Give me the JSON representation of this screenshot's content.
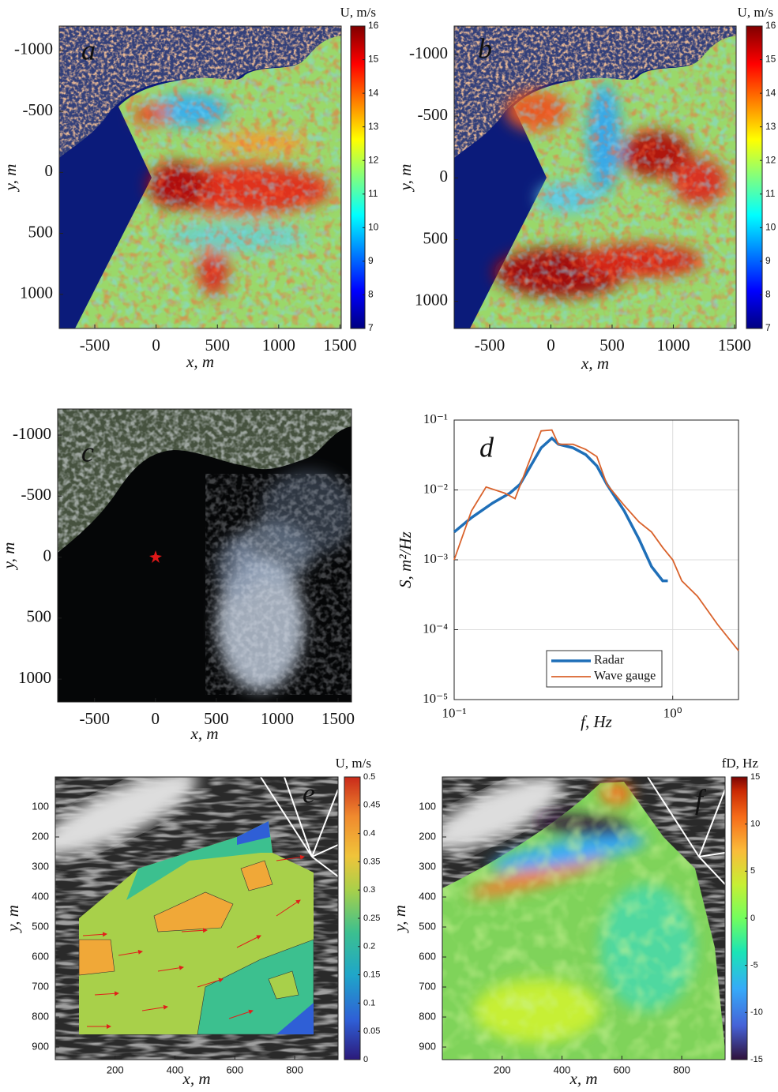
{
  "chart_data": [
    {
      "type": "heatmap",
      "panel_label": "a",
      "xlabel": "x, m",
      "ylabel": "y, m",
      "colorbar_label": "U, m/s",
      "colormap": "jet",
      "xlim": [
        -790,
        1510
      ],
      "xticks": [
        -500,
        0,
        500,
        1000,
        1500
      ],
      "ylim": [
        -1200,
        1280
      ],
      "y_reverse": true,
      "yticks": [
        -1000,
        -500,
        0,
        500,
        1000
      ],
      "clim": [
        7,
        16
      ],
      "cticks": [
        7,
        8,
        9,
        10,
        11,
        12,
        13,
        14,
        15,
        16
      ]
    },
    {
      "type": "heatmap",
      "panel_label": "b",
      "xlabel": "x, m",
      "ylabel": "y, m",
      "colorbar_label": "U, m/s",
      "colormap": "jet",
      "xlim": [
        -790,
        1513
      ],
      "xticks": [
        -500,
        0,
        500,
        1000,
        1500
      ],
      "ylim": [
        -1230,
        1220
      ],
      "y_reverse": true,
      "yticks": [
        -1000,
        -500,
        0,
        500,
        1000
      ],
      "clim": [
        7,
        16
      ],
      "cticks": [
        7,
        8,
        9,
        10,
        11,
        12,
        13,
        14,
        15,
        16
      ]
    },
    {
      "type": "image",
      "panel_label": "c",
      "xlabel": "x, m",
      "ylabel": "y, m",
      "xlim": [
        -803,
        1610
      ],
      "xticks": [
        -500,
        0,
        500,
        1000,
        1500
      ],
      "ylim": [
        -1214,
        1187
      ],
      "y_reverse": true,
      "yticks": [
        -1000,
        -500,
        0,
        500,
        1000
      ]
    },
    {
      "type": "line",
      "panel_label": "d",
      "xlabel": "f, Hz",
      "ylabel": "S, m²/Hz",
      "log_x": true,
      "log_y": true,
      "grid": true,
      "legend": "lower center",
      "xlim": [
        0.1,
        2
      ],
      "xticks": [
        {
          "value": 0.1,
          "label": "10⁻¹"
        },
        {
          "value": 1,
          "label": "10⁰"
        }
      ],
      "ylim": [
        1e-05,
        0.1
      ],
      "yticks": [
        {
          "value": 1e-05,
          "label": "10⁻⁵"
        },
        {
          "value": 0.0001,
          "label": "10⁻⁴"
        },
        {
          "value": 0.001,
          "label": "10⁻³"
        },
        {
          "value": 0.01,
          "label": "10⁻²"
        },
        {
          "value": 0.1,
          "label": "10⁻¹"
        }
      ],
      "series": [
        {
          "name": "Radar",
          "color": "#1f6fb8",
          "x": [
            0.1,
            0.12,
            0.15,
            0.18,
            0.2,
            0.22,
            0.25,
            0.28,
            0.3,
            0.35,
            0.4,
            0.45,
            0.5,
            0.6,
            0.7,
            0.8,
            0.9,
            0.95
          ],
          "values": [
            0.0025,
            0.004,
            0.0065,
            0.009,
            0.012,
            0.02,
            0.04,
            0.055,
            0.045,
            0.04,
            0.032,
            0.022,
            0.012,
            0.005,
            0.002,
            0.0008,
            0.0005,
            0.0005
          ]
        },
        {
          "name": "Wave gauge",
          "color": "#d9622b",
          "x": [
            0.1,
            0.12,
            0.14,
            0.17,
            0.19,
            0.22,
            0.25,
            0.28,
            0.3,
            0.35,
            0.4,
            0.45,
            0.5,
            0.6,
            0.7,
            0.8,
            0.9,
            1.0,
            1.1,
            1.3,
            1.6,
            2.0
          ],
          "values": [
            0.001,
            0.005,
            0.011,
            0.009,
            0.0075,
            0.025,
            0.07,
            0.072,
            0.045,
            0.045,
            0.038,
            0.03,
            0.012,
            0.006,
            0.0035,
            0.0025,
            0.0015,
            0.001,
            0.0005,
            0.0003,
            0.00012,
            5e-05
          ]
        }
      ]
    },
    {
      "type": "heatmap",
      "panel_label": "e",
      "xlabel": "x, m",
      "ylabel": "y, m",
      "colorbar_label": "U, m/s",
      "colormap": "parula",
      "xlim": [
        0,
        945
      ],
      "xticks": [
        200,
        400,
        600,
        800
      ],
      "ylim": [
        0,
        942
      ],
      "y_reverse": true,
      "yticks": [
        100,
        200,
        300,
        400,
        500,
        600,
        700,
        800,
        900
      ],
      "clim": [
        0,
        0.5
      ],
      "cticks": [
        0,
        0.05,
        0.1,
        0.15,
        0.2,
        0.25,
        0.3,
        0.35,
        0.4,
        0.45,
        0.5
      ]
    },
    {
      "type": "heatmap",
      "panel_label": "f",
      "xlabel": "x, m",
      "ylabel": "y, m",
      "colorbar_label": "fD, Hz",
      "colormap": "turbo",
      "xlim": [
        0,
        945
      ],
      "xticks": [
        200,
        400,
        600,
        800
      ],
      "ylim": [
        0,
        942
      ],
      "y_reverse": true,
      "yticks": [
        100,
        200,
        300,
        400,
        500,
        600,
        700,
        800,
        900
      ],
      "clim": [
        -15,
        15
      ],
      "cticks": [
        -15,
        -10,
        -5,
        0,
        5,
        10,
        15
      ]
    }
  ]
}
